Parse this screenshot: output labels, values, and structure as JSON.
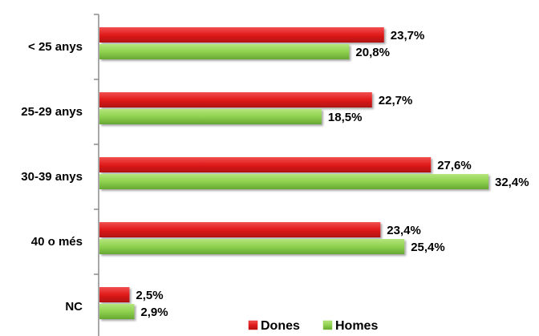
{
  "chart_data": {
    "type": "bar",
    "orientation": "horizontal",
    "categories": [
      "< 25 anys",
      "25-29 anys",
      "30-39 anys",
      "40 o més",
      "NC"
    ],
    "series": [
      {
        "name": "Dones",
        "color": "#e01b1b",
        "values": [
          23.7,
          22.7,
          27.6,
          23.4,
          2.5
        ],
        "labels": [
          "23,7%",
          "22,7%",
          "27,6%",
          "23,4%",
          "2,5%"
        ]
      },
      {
        "name": "Homes",
        "color": "#8fd14f",
        "values": [
          20.8,
          18.5,
          32.4,
          25.4,
          2.9
        ],
        "labels": [
          "20,8%",
          "18,5%",
          "32,4%",
          "25,4%",
          "2,9%"
        ]
      }
    ],
    "title": "",
    "xlabel": "",
    "ylabel": "",
    "xlim": [
      0,
      33
    ],
    "grid": false,
    "legend": "bottom"
  }
}
